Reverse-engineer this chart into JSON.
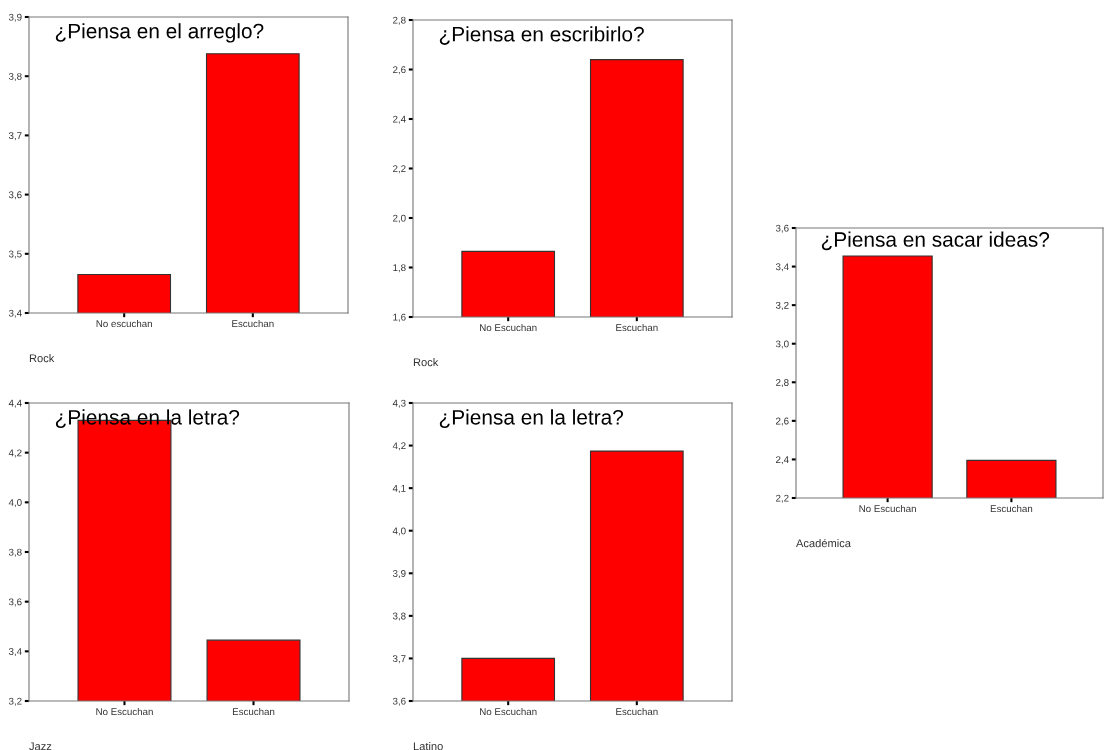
{
  "chart_data": [
    {
      "type": "bar",
      "title": "¿Piensa en el arreglo?",
      "xlabel": "Rock",
      "categories": [
        "No escuchan",
        "Escuchan"
      ],
      "values": [
        3.465,
        3.838
      ],
      "color": "#ff0000",
      "ylim": [
        3.4,
        3.9
      ],
      "yticks": [
        {
          "value": 3.4,
          "label": "3,4"
        },
        {
          "value": 3.5,
          "label": "3,5"
        },
        {
          "value": 3.6,
          "label": "3,6"
        },
        {
          "value": 3.7,
          "label": "3,7"
        },
        {
          "value": 3.8,
          "label": "3,8"
        },
        {
          "value": 3.9,
          "label": "3,9"
        }
      ]
    },
    {
      "type": "bar",
      "title": "¿Piensa en escribirlo?",
      "xlabel": "Rock",
      "categories": [
        "No Escuchan",
        "Escuchan"
      ],
      "values": [
        1.865,
        2.64
      ],
      "color": "#ff0000",
      "ylim": [
        1.6,
        2.8
      ],
      "yticks": [
        {
          "value": 1.6,
          "label": "1,6"
        },
        {
          "value": 1.8,
          "label": "1,8"
        },
        {
          "value": 2.0,
          "label": "2,0"
        },
        {
          "value": 2.2,
          "label": "2,2"
        },
        {
          "value": 2.4,
          "label": "2,4"
        },
        {
          "value": 2.6,
          "label": "2,6"
        },
        {
          "value": 2.8,
          "label": "2,8"
        }
      ]
    },
    {
      "type": "bar",
      "title": "¿Piensa en sacar ideas?",
      "xlabel": "Académica",
      "categories": [
        "No Escuchan",
        "Escuchan"
      ],
      "values": [
        3.455,
        2.395
      ],
      "color": "#ff0000",
      "ylim": [
        2.2,
        3.6
      ],
      "yticks": [
        {
          "value": 2.2,
          "label": "2,2"
        },
        {
          "value": 2.4,
          "label": "2,4"
        },
        {
          "value": 2.6,
          "label": "2,6"
        },
        {
          "value": 2.8,
          "label": "2,8"
        },
        {
          "value": 3.0,
          "label": "3,0"
        },
        {
          "value": 3.2,
          "label": "3,2"
        },
        {
          "value": 3.4,
          "label": "3,4"
        },
        {
          "value": 3.6,
          "label": "3,6"
        }
      ]
    },
    {
      "type": "bar",
      "title": "¿Piensa en la letra?",
      "xlabel": "Jazz",
      "categories": [
        "No Escuchan",
        "Escuchan"
      ],
      "values": [
        4.33,
        3.445
      ],
      "color": "#ff0000",
      "ylim": [
        3.2,
        4.4
      ],
      "yticks": [
        {
          "value": 3.2,
          "label": "3,2"
        },
        {
          "value": 3.4,
          "label": "3,4"
        },
        {
          "value": 3.6,
          "label": "3,6"
        },
        {
          "value": 3.8,
          "label": "3,8"
        },
        {
          "value": 4.0,
          "label": "4,0"
        },
        {
          "value": 4.2,
          "label": "4,2"
        },
        {
          "value": 4.4,
          "label": "4,4"
        }
      ]
    },
    {
      "type": "bar",
      "title": "¿Piensa en la letra?",
      "xlabel": "Latino",
      "categories": [
        "No Escuchan",
        "Escuchan"
      ],
      "values": [
        3.7,
        4.187
      ],
      "color": "#ff0000",
      "ylim": [
        3.6,
        4.3
      ],
      "yticks": [
        {
          "value": 3.6,
          "label": "3,6"
        },
        {
          "value": 3.7,
          "label": "3,7"
        },
        {
          "value": 3.8,
          "label": "3,8"
        },
        {
          "value": 3.9,
          "label": "3,9"
        },
        {
          "value": 4.0,
          "label": "4,0"
        },
        {
          "value": 4.1,
          "label": "4,1"
        },
        {
          "value": 4.2,
          "label": "4,2"
        },
        {
          "value": 4.3,
          "label": "4,3"
        }
      ]
    }
  ]
}
